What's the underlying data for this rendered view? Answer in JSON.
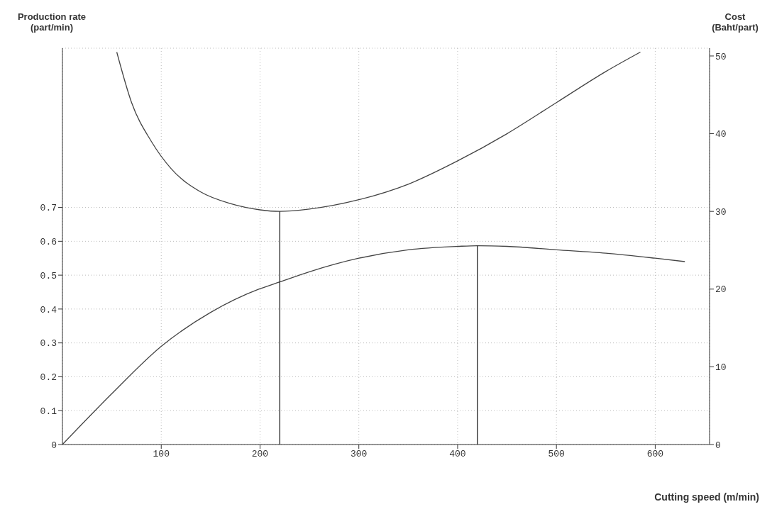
{
  "chart_data": {
    "type": "line",
    "xlabel": "Cutting speed (m/min)",
    "ylabel": "Production rate (part/min)",
    "y2label": "Cost (Baht/part)",
    "xlim": [
      0,
      655
    ],
    "xticks": [
      100,
      200,
      300,
      400,
      500,
      600
    ],
    "ylim": [
      0,
      1.17
    ],
    "yticks": [
      0,
      0.1,
      0.2,
      0.3,
      0.4,
      0.5,
      0.6,
      0.7
    ],
    "y2lim": [
      0,
      51
    ],
    "y2ticks": [
      0,
      10,
      20,
      30,
      40,
      50
    ],
    "grid": true,
    "marker": "none",
    "line_style": "solid",
    "series": [
      {
        "color": "#444444",
        "x": [
          0,
          50,
          100,
          150,
          200,
          220,
          250,
          300,
          350,
          400,
          420,
          450,
          500,
          550,
          600,
          630
        ],
        "values": [
          0,
          0.15,
          0.29,
          0.39,
          0.46,
          0.48,
          0.51,
          0.55,
          0.575,
          0.585,
          0.587,
          0.585,
          0.575,
          0.565,
          0.55,
          0.54
        ]
      },
      {
        "color": "#444444",
        "axis": "y2",
        "x": [
          55,
          70,
          90,
          110,
          140,
          170,
          200,
          220,
          250,
          300,
          350,
          400,
          450,
          500,
          550,
          585
        ],
        "values": [
          50.5,
          44,
          39,
          35.5,
          32.5,
          31,
          30.2,
          30,
          30.3,
          31.5,
          33.5,
          36.5,
          40,
          44,
          48,
          50.5
        ]
      },
      {
        "color": "#222222",
        "axis": "y2",
        "x": [
          220,
          220
        ],
        "values": [
          0,
          30
        ]
      },
      {
        "color": "#222222",
        "x": [
          420,
          420
        ],
        "values": [
          0,
          0.587
        ]
      }
    ]
  }
}
